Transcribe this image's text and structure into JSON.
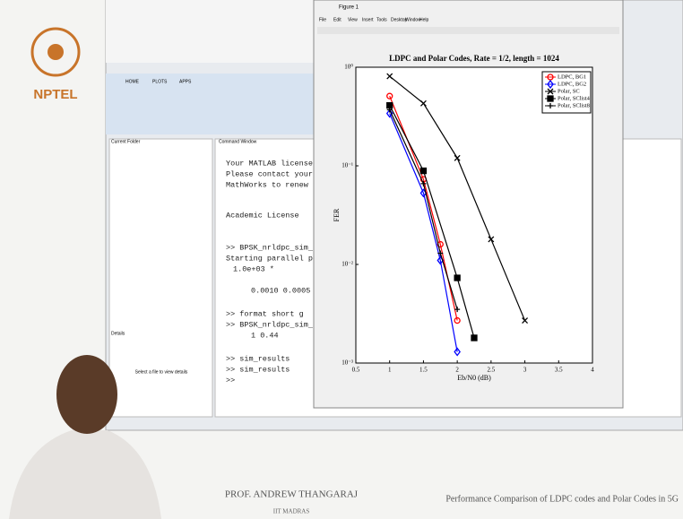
{
  "branding": {
    "logo_text": "NPTEL"
  },
  "figure_window": {
    "title": "Figure 1",
    "menu": [
      "File",
      "Edit",
      "View",
      "Insert",
      "Tools",
      "Desktop",
      "Window",
      "Help"
    ]
  },
  "matlab": {
    "tabs": [
      "HOME",
      "PLOTS",
      "APPS"
    ],
    "current_folder": "Current Folder",
    "command_window": "Command Window",
    "details": "Details",
    "select_hint": "Select a file to view details",
    "console": [
      "Your MATLAB license wi",
      "Please contact your sy",
      "MathWorks to renew thi",
      "Academic License",
      ">> BPSK_nrldpc_sim_RM_FP",
      "Starting parallel pool (pa",
      "1.0e+03 *",
      "0.0010    0.0005    0.",
      ">> format short g",
      ">> BPSK_nrldpc_sim_RM_FP",
      "1          0.44",
      ">> sim_results",
      ">> sim_results",
      ">>"
    ]
  },
  "chart_data": {
    "type": "line",
    "title": "LDPC and Polar Codes, Rate = 1/2, length = 1024",
    "x_label": "Eb/N0 (dB)",
    "y_label": "FER",
    "log_y": true,
    "legend": "upper right",
    "xlim": [
      0.5,
      4
    ],
    "xticks": [
      0.5,
      1,
      1.5,
      2,
      2.5,
      3,
      3.5,
      4
    ],
    "ylim": [
      0.001,
      1
    ],
    "yticks": [
      {
        "value": 1,
        "label": "10⁰"
      },
      {
        "value": 0.1,
        "label": "10⁻¹"
      },
      {
        "value": 0.01,
        "label": "10⁻²"
      },
      {
        "value": 0.001,
        "label": "10⁻³"
      }
    ],
    "series": [
      {
        "name": "LDPC, BG1",
        "color": "#ff0000",
        "marker": "o",
        "x": [
          1,
          1.5,
          1.75,
          2
        ],
        "values": [
          0.51,
          0.073,
          0.016,
          0.0027
        ]
      },
      {
        "name": "LDPC, BG2",
        "color": "#0000ff",
        "marker": "d",
        "x": [
          1,
          1.5,
          1.75,
          2
        ],
        "values": [
          0.34,
          0.053,
          0.011,
          0.0013
        ]
      },
      {
        "name": "Polar, SC",
        "color": "#000000",
        "marker": "x",
        "x": [
          1,
          1.5,
          2,
          2.5,
          3
        ],
        "values": [
          0.81,
          0.43,
          0.12,
          0.018,
          0.0027
        ]
      },
      {
        "name": "Polar, SClist4",
        "color": "#000000",
        "marker": "s",
        "x": [
          1,
          1.5,
          2,
          2.25
        ],
        "values": [
          0.41,
          0.089,
          0.0073,
          0.0018
        ]
      },
      {
        "name": "Polar, SClist8",
        "color": "#000000",
        "marker": "+",
        "x": [
          1,
          1.5,
          1.75,
          2
        ],
        "values": [
          0.37,
          0.066,
          0.013,
          0.0035
        ]
      }
    ]
  },
  "footer": {
    "speaker": "PROF. ANDREW THANGARAJ",
    "institute": "IIT MADRAS",
    "lecture_title": "Performance Comparison of LDPC codes and Polar Codes in 5G"
  }
}
